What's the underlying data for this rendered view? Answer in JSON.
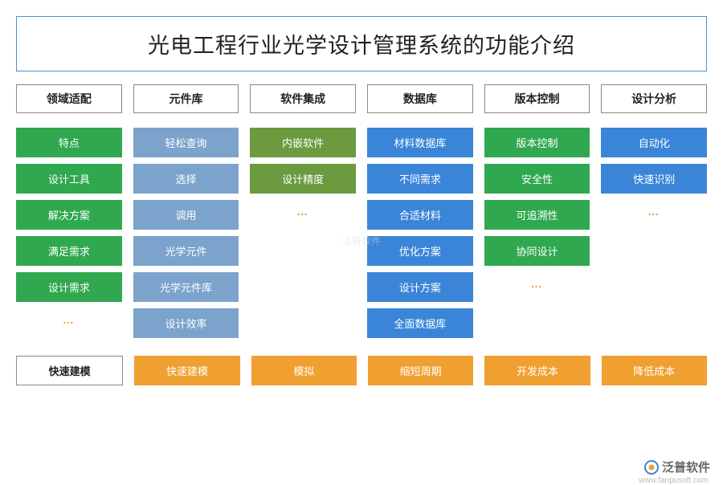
{
  "title": "光电工程行业光学设计管理系统的功能介绍",
  "colors": {
    "green": "#2fa84f",
    "steel": "#7ba3cc",
    "olive": "#6b9a3f",
    "blue": "#3a85d8",
    "orange": "#f0a030",
    "border_blue": "#4a90d9",
    "text": "#222222",
    "ellipsis": "#e8a23a"
  },
  "columns": [
    {
      "header": "领域适配",
      "cells": [
        {
          "label": "特点",
          "color": "#2fa84f"
        },
        {
          "label": "设计工具",
          "color": "#2fa84f"
        },
        {
          "label": "解决方案",
          "color": "#2fa84f"
        },
        {
          "label": "满足需求",
          "color": "#2fa84f"
        },
        {
          "label": "设计需求",
          "color": "#2fa84f"
        }
      ],
      "ellipsis": true
    },
    {
      "header": "元件库",
      "cells": [
        {
          "label": "轻松查询",
          "color": "#7ba3cc"
        },
        {
          "label": "选择",
          "color": "#7ba3cc"
        },
        {
          "label": "调用",
          "color": "#7ba3cc"
        },
        {
          "label": "光学元件",
          "color": "#7ba3cc"
        },
        {
          "label": "光学元件库",
          "color": "#7ba3cc"
        },
        {
          "label": "设计效率",
          "color": "#7ba3cc"
        }
      ],
      "ellipsis": false
    },
    {
      "header": "软件集成",
      "cells": [
        {
          "label": "内嵌软件",
          "color": "#6b9a3f"
        },
        {
          "label": "设计精度",
          "color": "#6b9a3f"
        }
      ],
      "ellipsis": true
    },
    {
      "header": "数据库",
      "cells": [
        {
          "label": "材料数据库",
          "color": "#3a85d8"
        },
        {
          "label": "不同需求",
          "color": "#3a85d8"
        },
        {
          "label": "合适材料",
          "color": "#3a85d8"
        },
        {
          "label": "优化方案",
          "color": "#3a85d8"
        },
        {
          "label": "设计方案",
          "color": "#3a85d8"
        },
        {
          "label": "全面数据库",
          "color": "#3a85d8"
        }
      ],
      "ellipsis": false
    },
    {
      "header": "版本控制",
      "cells": [
        {
          "label": "版本控制",
          "color": "#2fa84f"
        },
        {
          "label": "安全性",
          "color": "#2fa84f"
        },
        {
          "label": "可追溯性",
          "color": "#2fa84f"
        },
        {
          "label": "协同设计",
          "color": "#2fa84f"
        }
      ],
      "ellipsis": true
    },
    {
      "header": "设计分析",
      "cells": [
        {
          "label": "自动化",
          "color": "#3a85d8"
        },
        {
          "label": "快速识别",
          "color": "#3a85d8"
        }
      ],
      "ellipsis": true
    }
  ],
  "bottom": {
    "first": "快速建模",
    "cells": [
      {
        "label": "快速建模",
        "color": "#f0a030"
      },
      {
        "label": "模拟",
        "color": "#f0a030"
      },
      {
        "label": "缩短周期",
        "color": "#f0a030"
      },
      {
        "label": "开发成本",
        "color": "#f0a030"
      },
      {
        "label": "降低成本",
        "color": "#f0a030"
      }
    ]
  },
  "brand": {
    "text": "泛普软件",
    "icon_outer": "#3a85d8",
    "icon_inner": "#f0a030",
    "url": "www.fanpusoft.com"
  },
  "watermark": "泛普软件"
}
